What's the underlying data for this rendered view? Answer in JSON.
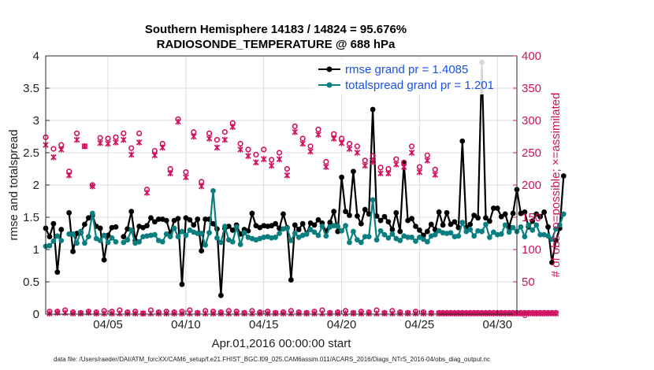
{
  "chart_data": {
    "type": "line",
    "title": [
      "Southern Hemisphere 14183 / 14824 = 95.676%",
      "RADIOSONDE_TEMPERATURE @ 688 hPa"
    ],
    "xlabel": "Apr.01,2016 00:00:00 start",
    "ylabel_left": "rmse and totalspread",
    "ylabel_right": "# of obs: o=possible; ×=assimilated",
    "footer": "data file: /Users/raeder/DAI/ATM_forcXX/CAM6_setup/f.e21.FHIST_BGC.f09_025.CAM6assim.011/ACARS_2016/Diags_NTrS_2016-04/obs_diag_output.nc",
    "xlim": [
      1,
      31.25
    ],
    "ylim_left": [
      0,
      4
    ],
    "ylim_right": [
      0,
      400
    ],
    "yticks_left": [
      "0",
      "0.5",
      "1",
      "1.5",
      "2",
      "2.5",
      "3",
      "3.5",
      "4"
    ],
    "yticks_right": [
      "0",
      "50",
      "100",
      "150",
      "200",
      "250",
      "300",
      "350",
      "400"
    ],
    "xticks": [
      {
        "day": 5,
        "label": "04/05"
      },
      {
        "day": 10,
        "label": "04/10"
      },
      {
        "day": 15,
        "label": "04/15"
      },
      {
        "day": 20,
        "label": "04/20"
      },
      {
        "day": 25,
        "label": "04/25"
      },
      {
        "day": 30,
        "label": "04/30"
      }
    ],
    "x_start": 1,
    "x_step": 0.25,
    "series": [
      {
        "name": "rmse grand pr = 1.4085",
        "color": "#000000",
        "axis": "left",
        "marker": "circle",
        "values": [
          1.33,
          1.2,
          1.4,
          0.65,
          1.31,
          null,
          1.57,
          0.97,
          1.25,
          1.26,
          1.39,
          1.49,
          1.53,
          1.36,
          1.33,
          0.84,
          1.22,
          1.34,
          1.35,
          null,
          1.2,
          1.32,
          1.59,
          1.14,
          1.36,
          1.34,
          1.37,
          1.49,
          1.43,
          1.47,
          1.47,
          1.45,
          1.25,
          1.45,
          1.48,
          0.46,
          1.49,
          1.46,
          1.38,
          1.47,
          0.98,
          1.47,
          1.47,
          1.4,
          1.32,
          0.29,
          1.33,
          1.36,
          1.3,
          1.38,
          1.24,
          1.31,
          1.29,
          1.56,
          1.37,
          1.34,
          1.37,
          1.36,
          1.37,
          1.4,
          1.33,
          1.55,
          1.34,
          0.53,
          1.38,
          1.31,
          1.4,
          1.24,
          1.41,
          1.38,
          1.46,
          1.41,
          1.28,
          1.42,
          1.59,
          1.28,
          2.12,
          1.59,
          1.53,
          2.21,
          1.52,
          1.4,
          1.62,
          1.55,
          3.17,
          1.52,
          1.45,
          1.51,
          1.43,
          1.31,
          1.57,
          1.28,
          2.34,
          1.45,
          1.48,
          1.36,
          1.3,
          1.22,
          1.28,
          1.39,
          1.31,
          1.58,
          1.38,
          1.57,
          1.39,
          1.43,
          1.34,
          2.68,
          1.34,
          1.39,
          1.53,
          1.49,
          3.9,
          1.49,
          1.44,
          1.64,
          1.64,
          1.51,
          1.55,
          1.35,
          1.56,
          1.93,
          1.56,
          1.58,
          1.35,
          1.44,
          1.55,
          1.51,
          1.58,
          1.35,
          0.8,
          1.14,
          1.33,
          2.14
        ]
      },
      {
        "name": "totalspread grand pr = 1.201",
        "color": "#0b7f7f",
        "axis": "left",
        "marker": "circle",
        "values": [
          1.05,
          1.06,
          1.13,
          1.21,
          1.14,
          null,
          1.24,
          1.24,
          1.1,
          1.28,
          1.1,
          1.2,
          1.56,
          1.17,
          1.14,
          1.22,
          1.11,
          1.18,
          1.12,
          null,
          1.11,
          1.15,
          1.3,
          1.1,
          1.12,
          1.2,
          1.21,
          1.22,
          1.23,
          1.14,
          1.12,
          1.24,
          1.2,
          1.33,
          1.2,
          1.28,
          1.22,
          1.3,
          1.27,
          1.25,
          1.25,
          1.07,
          1.26,
          1.91,
          1.18,
          1.11,
          1.36,
          1.15,
          1.12,
          1.35,
          1.08,
          1.26,
          1.19,
          1.17,
          1.15,
          1.17,
          1.19,
          1.2,
          1.18,
          1.19,
          1.25,
          1.32,
          1.33,
          1.14,
          1.25,
          1.19,
          1.22,
          1.24,
          1.31,
          1.27,
          1.22,
          1.36,
          1.21,
          1.35,
          1.37,
          1.36,
          1.29,
          1.37,
          1.11,
          1.28,
          1.15,
          1.11,
          1.2,
          1.2,
          1.77,
          1.15,
          1.29,
          1.23,
          1.18,
          1.24,
          1.17,
          1.14,
          1.21,
          1.19,
          1.19,
          1.13,
          1.19,
          1.16,
          1.12,
          1.21,
          1.23,
          1.29,
          1.26,
          1.25,
          1.26,
          1.2,
          1.21,
          1.42,
          1.28,
          1.31,
          1.21,
          1.29,
          1.28,
          1.39,
          1.19,
          1.27,
          1.23,
          1.24,
          1.38,
          1.27,
          1.34,
          1.28,
          1.35,
          1.2,
          1.38,
          1.3,
          1.38,
          1.23,
          1.23,
          1.21,
          1.16,
          1.32,
          1.38,
          1.55
        ]
      },
      {
        "name": "possible",
        "color": "#d0105e",
        "axis": "right",
        "marker": "o",
        "values": [
          274,
          4,
          256,
          4,
          262,
          6,
          221,
          3,
          280,
          2,
          260,
          4,
          200,
          3,
          273,
          5,
          272,
          4,
          274,
          6,
          280,
          3,
          257,
          4,
          280,
          1,
          193,
          6,
          253,
          3,
          264,
          4,
          225,
          3,
          302,
          4,
          220,
          6,
          282,
          2,
          205,
          5,
          280,
          4,
          270,
          3,
          282,
          5,
          296,
          4,
          264,
          2,
          255,
          5,
          247,
          3,
          255,
          4,
          239,
          2,
          250,
          3,
          225,
          5,
          291,
          3,
          272,
          2,
          260,
          4,
          286,
          6,
          236,
          2,
          279,
          3,
          272,
          5,
          264,
          2,
          260,
          4,
          238,
          3,
          245,
          6,
          227,
          2,
          225,
          5,
          240,
          3,
          235,
          2,
          260,
          4,
          228,
          3,
          246,
          2,
          224,
          2,
          2,
          2,
          2,
          2,
          2,
          2,
          2,
          2,
          2,
          2,
          2,
          2,
          2,
          2,
          2,
          2,
          2,
          2,
          2,
          2,
          2,
          2,
          2,
          2,
          2,
          2,
          2,
          2,
          2,
          2
        ]
      },
      {
        "name": "assimilated",
        "color": "#d0105e",
        "axis": "right",
        "marker": "x",
        "values": [
          262,
          1,
          243,
          2,
          255,
          2,
          215,
          1,
          270,
          1,
          260,
          2,
          198,
          1,
          265,
          1,
          264,
          1,
          266,
          1,
          270,
          1,
          247,
          1,
          266,
          1,
          188,
          1,
          246,
          1,
          258,
          1,
          218,
          1,
          298,
          1,
          212,
          1,
          275,
          1,
          198,
          1,
          272,
          1,
          258,
          1,
          270,
          1,
          290,
          1,
          255,
          1,
          245,
          1,
          235,
          1,
          240,
          1,
          230,
          1,
          240,
          1,
          215,
          1,
          282,
          1,
          264,
          1,
          252,
          1,
          278,
          1,
          228,
          1,
          272,
          1,
          265,
          1,
          256,
          1,
          250,
          1,
          230,
          1,
          236,
          1,
          218,
          1,
          218,
          1,
          232,
          1,
          228,
          1,
          250,
          1,
          220,
          1,
          238,
          1,
          216,
          1,
          1,
          1,
          1,
          1,
          1,
          1,
          1,
          1,
          1,
          1,
          1,
          1,
          1,
          1,
          1,
          1,
          1,
          1,
          1,
          1,
          1,
          1,
          1,
          1,
          1,
          1,
          1,
          1,
          1,
          1
        ]
      }
    ]
  }
}
